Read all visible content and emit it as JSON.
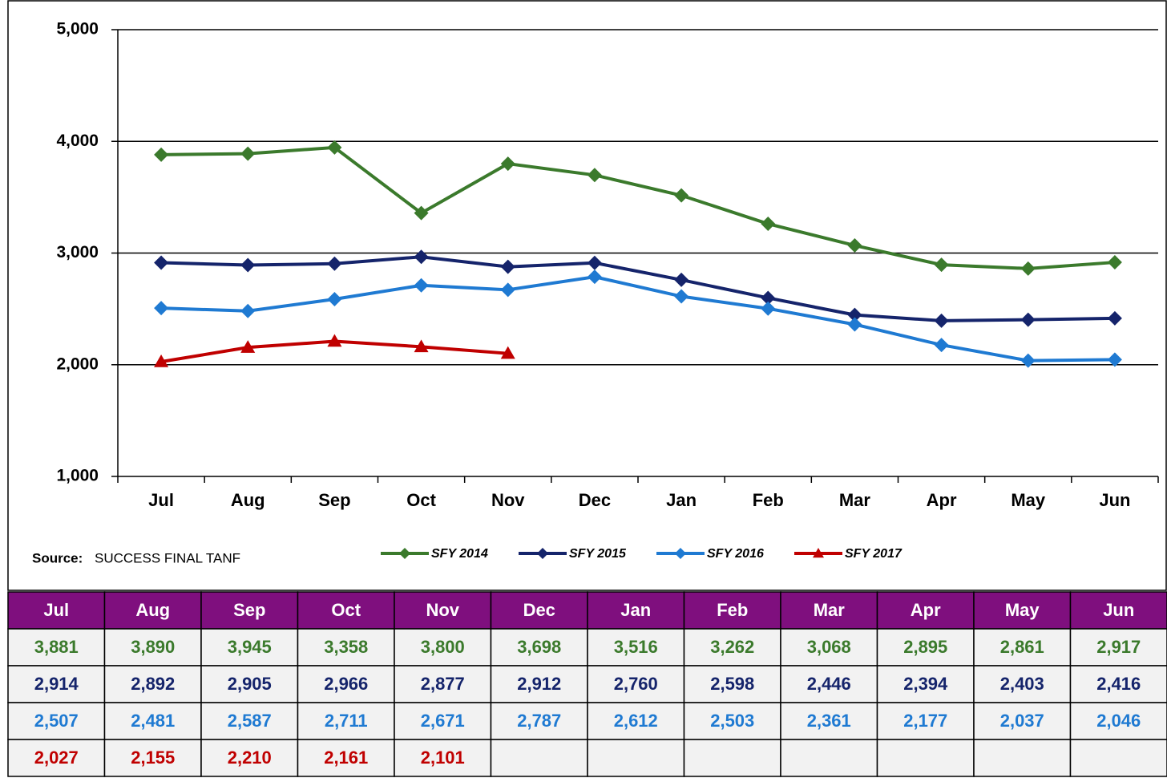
{
  "chart_data": {
    "type": "line",
    "categories": [
      "Jul",
      "Aug",
      "Sep",
      "Oct",
      "Nov",
      "Dec",
      "Jan",
      "Feb",
      "Mar",
      "Apr",
      "May",
      "Jun"
    ],
    "series": [
      {
        "name": "SFY 2014",
        "color": "#3b7a2c",
        "marker": "diamond",
        "values": [
          3881,
          3890,
          3945,
          3358,
          3800,
          3698,
          3516,
          3262,
          3068,
          2895,
          2861,
          2917
        ],
        "value_labels": [
          "3,881",
          "3,890",
          "3,945",
          "3,358",
          "3,800",
          "3,698",
          "3,516",
          "3,262",
          "3,068",
          "2,895",
          "2,861",
          "2,917"
        ]
      },
      {
        "name": "SFY 2015",
        "color": "#15246b",
        "marker": "diamond",
        "values": [
          2914,
          2892,
          2905,
          2966,
          2877,
          2912,
          2760,
          2598,
          2446,
          2394,
          2403,
          2416
        ],
        "value_labels": [
          "2,914",
          "2,892",
          "2,905",
          "2,966",
          "2,877",
          "2,912",
          "2,760",
          "2,598",
          "2,446",
          "2,394",
          "2,403",
          "2,416"
        ]
      },
      {
        "name": "SFY 2016",
        "color": "#1f7ad2",
        "marker": "diamond",
        "values": [
          2507,
          2481,
          2587,
          2711,
          2671,
          2787,
          2612,
          2503,
          2361,
          2177,
          2037,
          2046
        ],
        "value_labels": [
          "2,507",
          "2,481",
          "2,587",
          "2,711",
          "2,671",
          "2,787",
          "2,612",
          "2,503",
          "2,361",
          "2,177",
          "2,037",
          "2,046"
        ]
      },
      {
        "name": "SFY 2017",
        "color": "#c00000",
        "marker": "triangle",
        "values": [
          2027,
          2155,
          2210,
          2161,
          2101,
          null,
          null,
          null,
          null,
          null,
          null,
          null
        ],
        "value_labels": [
          "2,027",
          "2,155",
          "2,210",
          "2,161",
          "2,101",
          null,
          null,
          null,
          null,
          null,
          null,
          null
        ]
      }
    ],
    "ylim": [
      1000,
      5000
    ],
    "yticks": [
      {
        "value": 1000,
        "label": "1,000"
      },
      {
        "value": 2000,
        "label": "2,000"
      },
      {
        "value": 3000,
        "label": "3,000"
      },
      {
        "value": 4000,
        "label": "4,000"
      },
      {
        "value": 5000,
        "label": "5,000"
      }
    ],
    "grid": true,
    "source_label": "Source:",
    "source": "SUCCESS FINAL TANF",
    "table_header_color": "#7f0f7e"
  }
}
